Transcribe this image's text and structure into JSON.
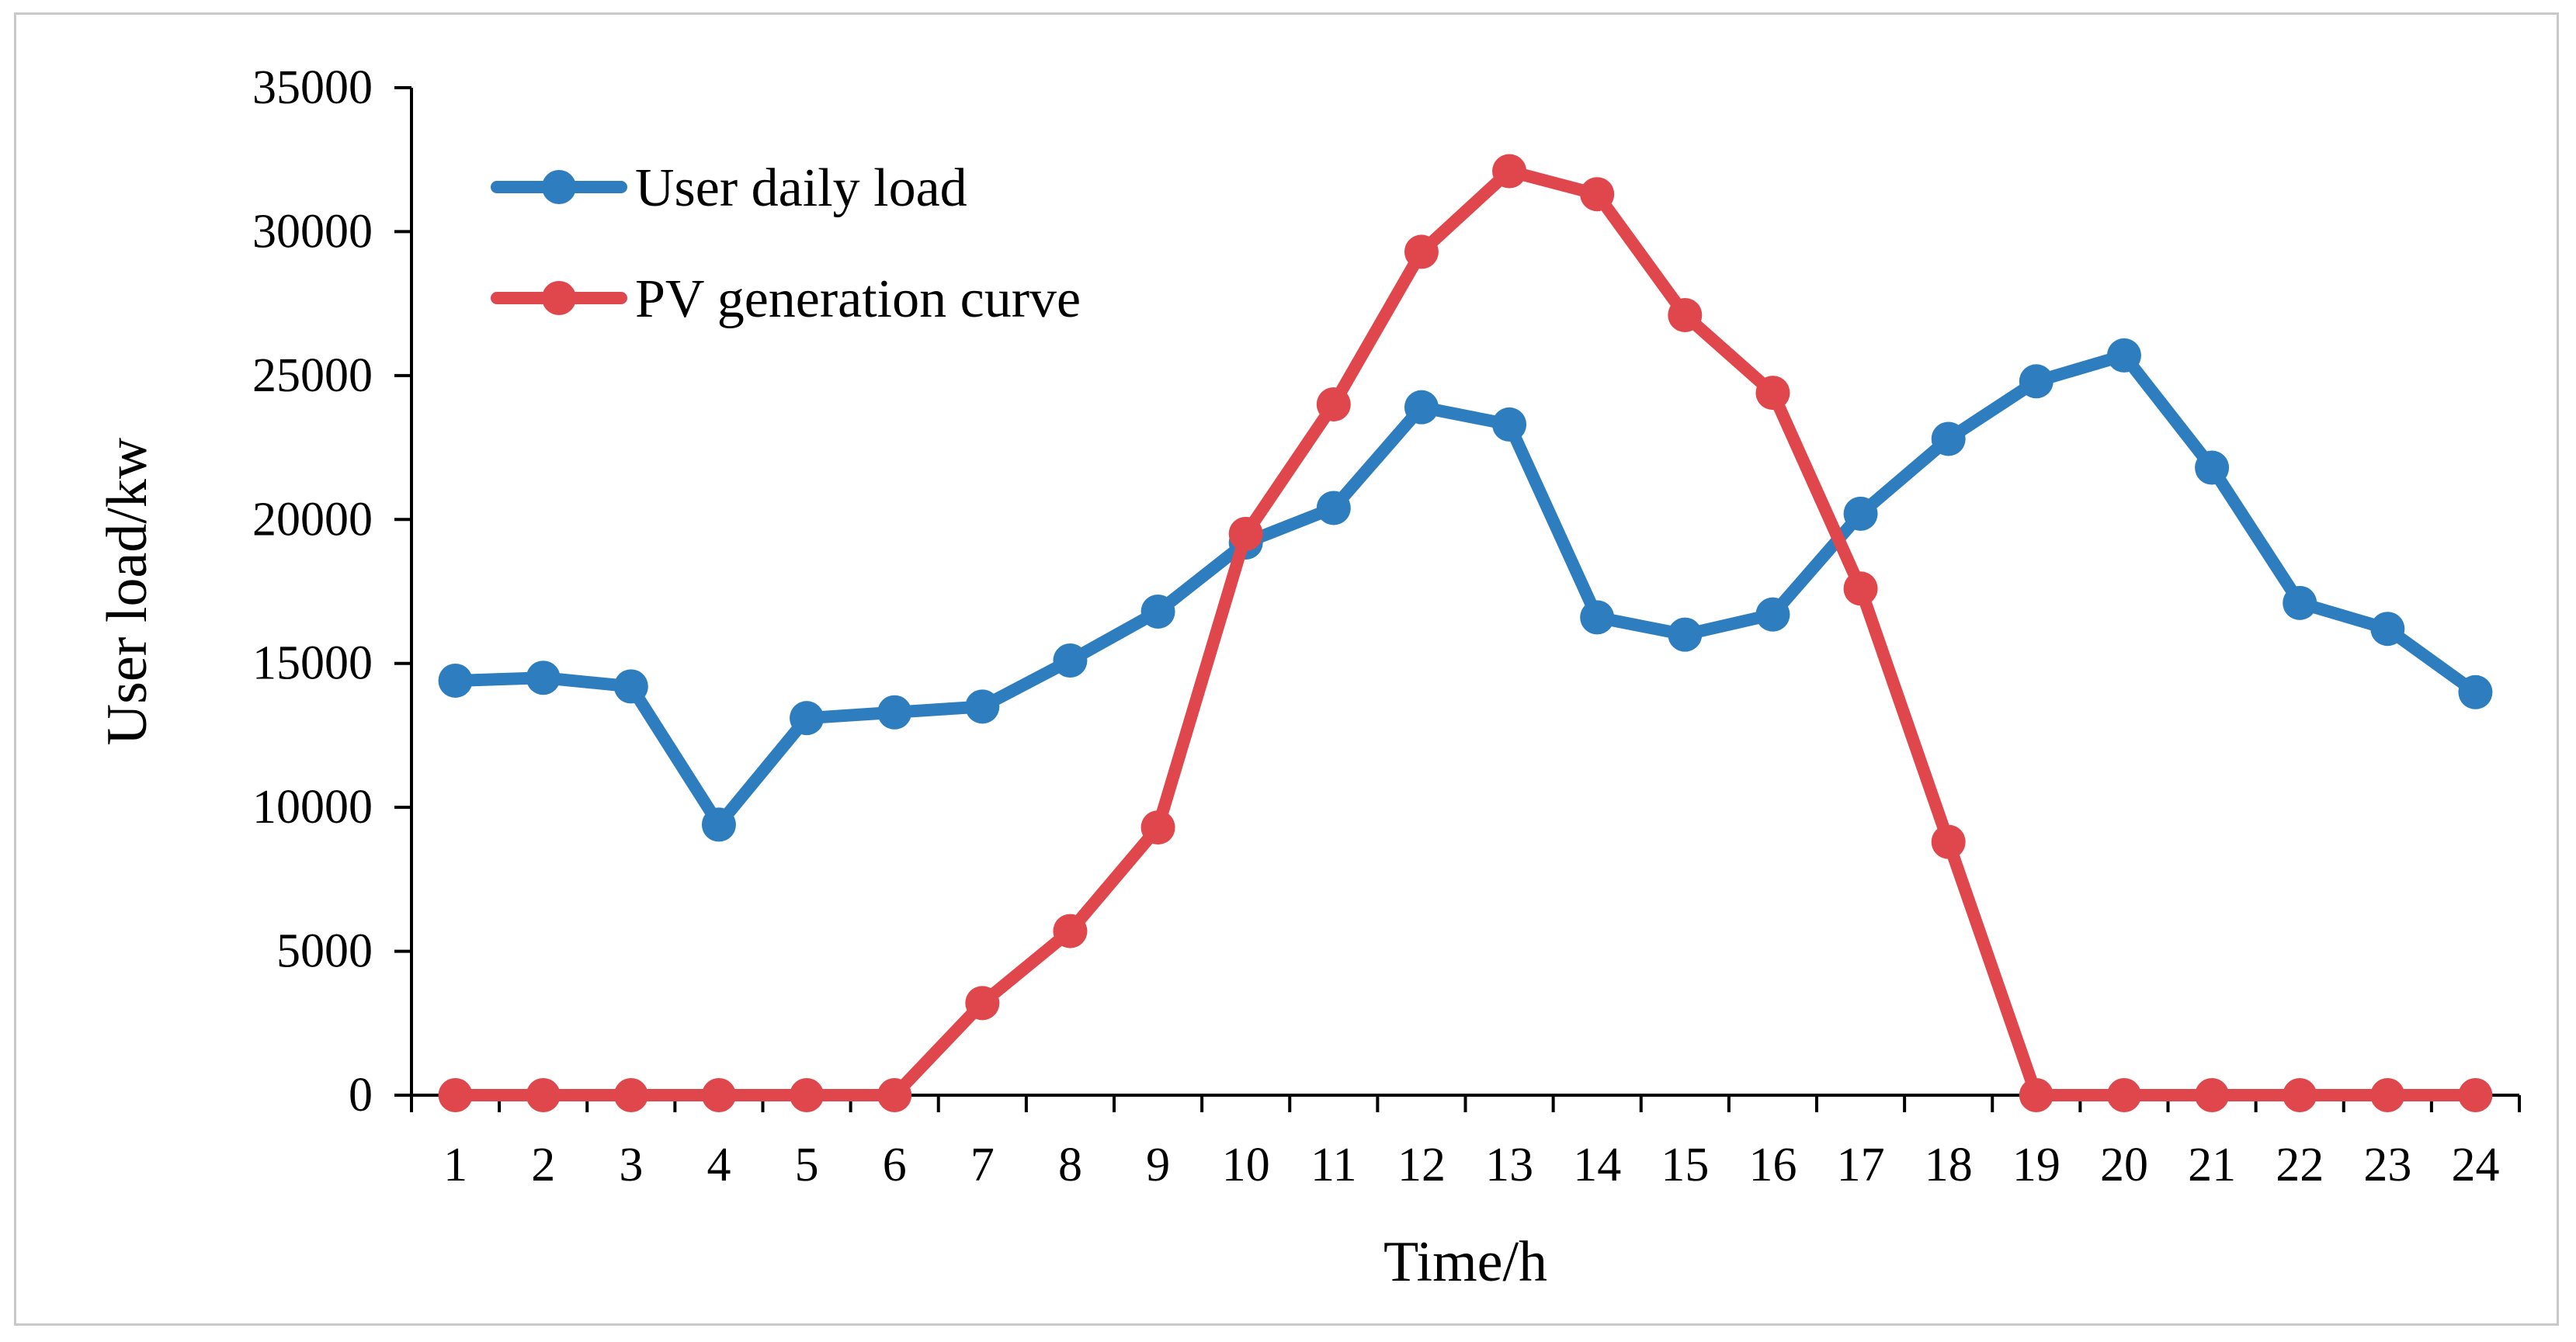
{
  "chart_data": {
    "type": "line",
    "title": "",
    "xlabel": "Time/h",
    "ylabel": "User load/kw",
    "ylim": [
      0,
      35000
    ],
    "yticks": [
      0,
      5000,
      10000,
      15000,
      20000,
      25000,
      30000,
      35000
    ],
    "ytick_labels": [
      "0",
      "5000",
      "10000",
      "15000",
      "20000",
      "25000",
      "30000",
      "35000"
    ],
    "categories": [
      "1",
      "2",
      "3",
      "4",
      "5",
      "6",
      "7",
      "8",
      "9",
      "10",
      "11",
      "12",
      "13",
      "14",
      "15",
      "16",
      "17",
      "18",
      "19",
      "20",
      "21",
      "22",
      "23",
      "24"
    ],
    "grid": false,
    "legend_position": "top-left",
    "series": [
      {
        "name": "User daily load",
        "color": "#2e7ebf",
        "values": [
          14400,
          14500,
          14200,
          9400,
          13100,
          13300,
          13500,
          15100,
          16800,
          19200,
          20400,
          23900,
          23300,
          16600,
          16000,
          16700,
          20200,
          22800,
          24800,
          25700,
          21800,
          17100,
          16200,
          14000
        ]
      },
      {
        "name": "PV generation curve",
        "color": "#e0474c",
        "values": [
          0,
          0,
          0,
          0,
          0,
          0,
          3200,
          5700,
          9300,
          19500,
          24000,
          29300,
          32100,
          31300,
          27100,
          24400,
          17600,
          8800,
          0,
          0,
          0,
          0,
          0,
          0
        ]
      }
    ]
  }
}
